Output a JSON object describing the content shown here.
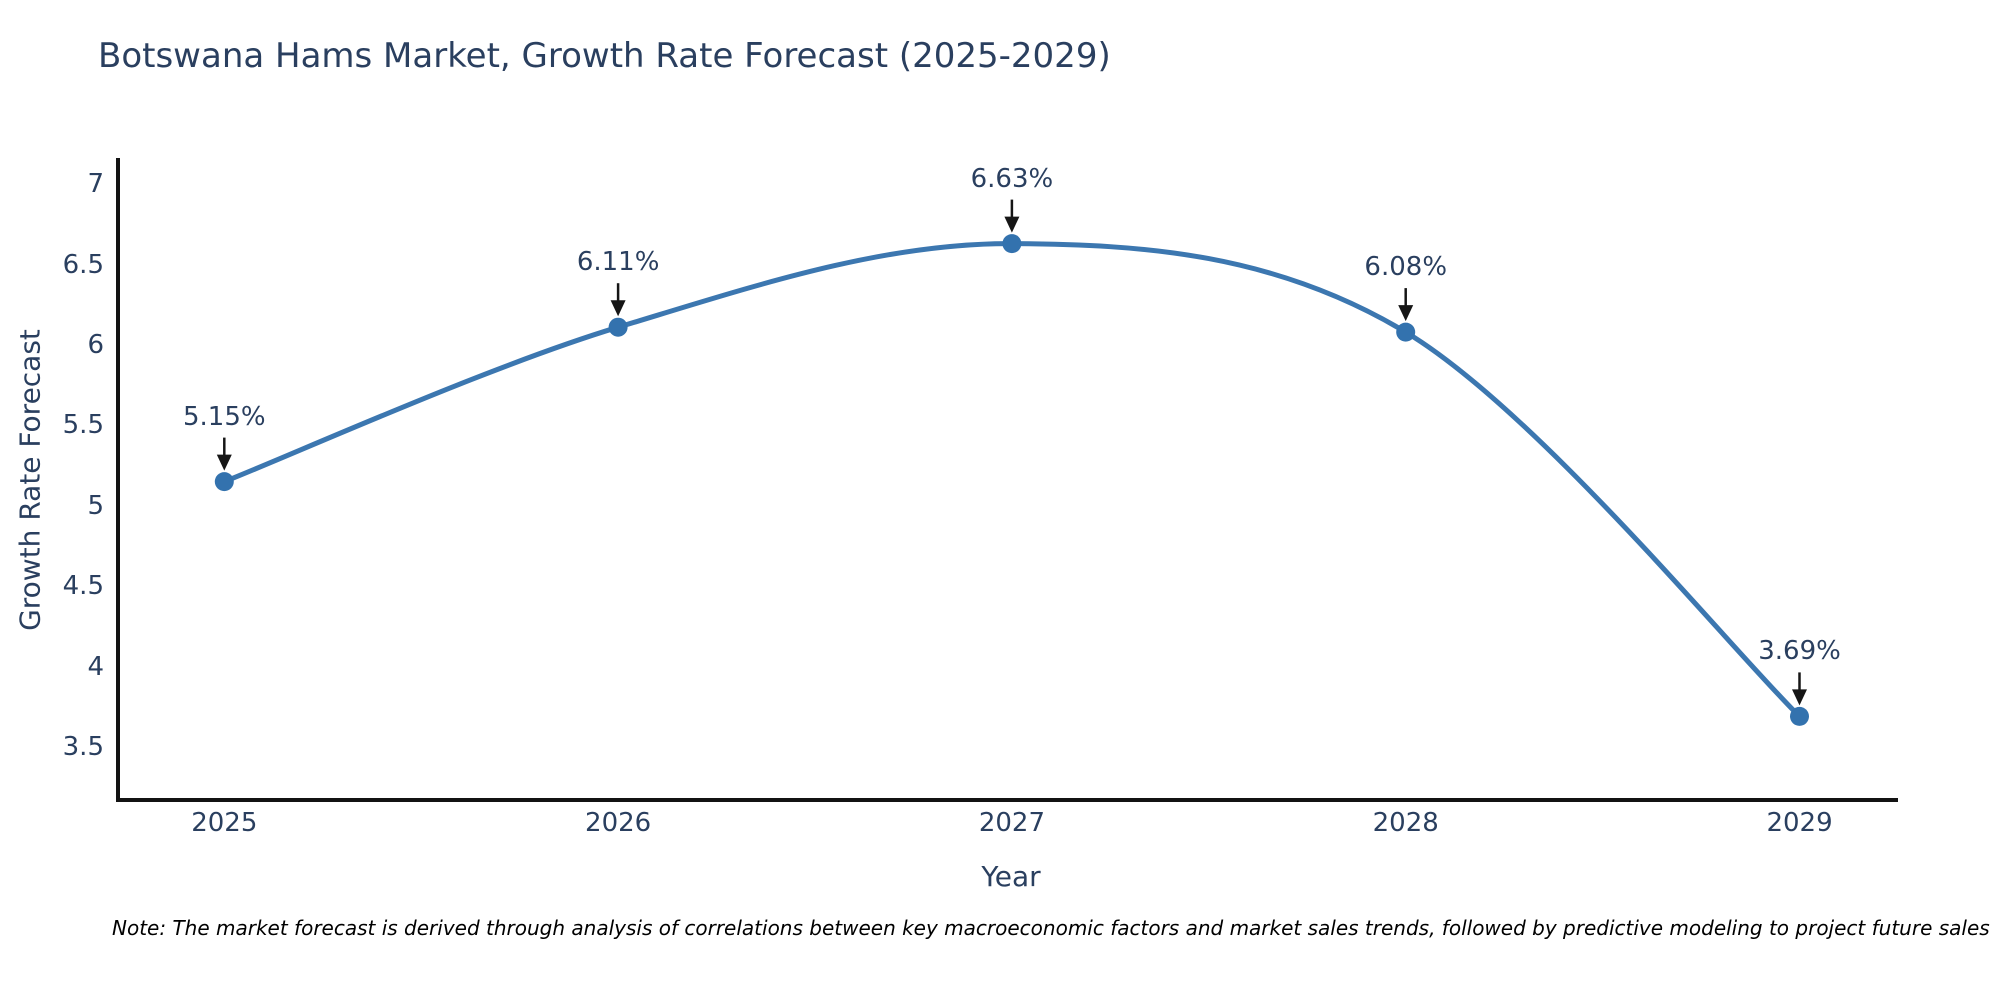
{
  "title": "Botswana Hams Market, Growth Rate Forecast (2025-2029)",
  "note": "Note: The market forecast is derived through analysis of correlations between key macroeconomic factors and market sales trends, followed by predictive modeling to project future sales",
  "chart_data": {
    "type": "line",
    "title": "Botswana Hams Market, Growth Rate Forecast (2025-2029)",
    "xlabel": "Year",
    "ylabel": "Growth Rate Forecast",
    "x": [
      2025,
      2026,
      2027,
      2028,
      2029
    ],
    "values": [
      5.15,
      6.11,
      6.63,
      6.08,
      3.69
    ],
    "point_labels": [
      "5.15%",
      "6.11%",
      "6.63%",
      "6.08%",
      "3.69%"
    ],
    "xticks": [
      "2025",
      "2026",
      "2027",
      "2028",
      "2029"
    ],
    "yticks": [
      3.5,
      4,
      4.5,
      5,
      5.5,
      6,
      6.5,
      7
    ],
    "xlim": [
      2024.73,
      2029.25
    ],
    "ylim": [
      3.17,
      7.15
    ],
    "grid": false,
    "legend": "none",
    "line_shape": "spline",
    "annotation_arrows": true,
    "colors": {
      "line": "#3c77b0",
      "marker": "#3372ae",
      "axis_line": "#131313",
      "text": "#2a3f5f",
      "arrow": "#161616",
      "background": "#ffffff"
    }
  }
}
